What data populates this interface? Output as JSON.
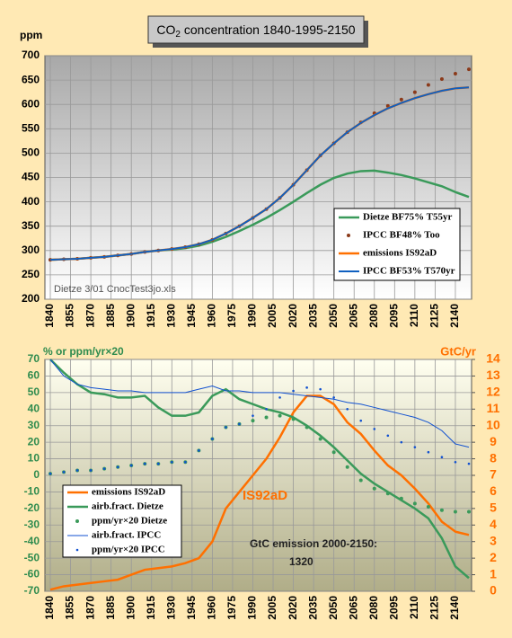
{
  "chart_data": [
    {
      "type": "line",
      "title": {
        "main": "CO",
        "sub": "2",
        "rest": " concentration 1840-1995-2150"
      },
      "y_label": "ppm",
      "annotations": [
        "Dietze 3/01 CnocTest3jo.xls"
      ],
      "x": [
        1840,
        1850,
        1860,
        1870,
        1880,
        1890,
        1900,
        1910,
        1920,
        1930,
        1940,
        1950,
        1960,
        1970,
        1980,
        1990,
        2000,
        2010,
        2020,
        2030,
        2040,
        2050,
        2060,
        2070,
        2080,
        2090,
        2100,
        2110,
        2120,
        2130,
        2140,
        2150
      ],
      "xlim": [
        1836,
        2152
      ],
      "xticks": [
        1840,
        1855,
        1870,
        1885,
        1900,
        1915,
        1930,
        1945,
        1960,
        1975,
        1990,
        2005,
        2020,
        2035,
        2050,
        2065,
        2080,
        2095,
        2110,
        2125,
        2140
      ],
      "ylim": [
        200,
        700
      ],
      "yticks": [
        200,
        250,
        300,
        350,
        400,
        450,
        500,
        550,
        600,
        650,
        700
      ],
      "grid": true,
      "series": [
        {
          "name": "Dietze BF75% T55yr",
          "color": "#3a9a5a",
          "style": "line",
          "width": 2.5,
          "values": [
            281,
            282,
            283,
            285,
            287,
            290,
            293,
            297,
            300,
            302,
            305,
            310,
            318,
            328,
            340,
            353,
            367,
            383,
            400,
            418,
            435,
            449,
            458,
            463,
            464,
            460,
            455,
            448,
            440,
            432,
            420,
            410
          ]
        },
        {
          "name": "IPCC BF48% Too",
          "color": "#8b3a1a",
          "style": "dots",
          "width": 2,
          "values": [
            281,
            282,
            283,
            285,
            287,
            290,
            293,
            297,
            300,
            303,
            307,
            313,
            322,
            335,
            350,
            367,
            385,
            408,
            435,
            465,
            495,
            520,
            543,
            563,
            582,
            597,
            610,
            625,
            640,
            652,
            663,
            672
          ]
        },
        {
          "name": "emissions IS92aD",
          "color": "#ff7000",
          "style": "line",
          "width": 2.5,
          "values": [
            281,
            282,
            283,
            285,
            287,
            290,
            293,
            297,
            300,
            303,
            307,
            313,
            322,
            335,
            350,
            367,
            385,
            408,
            435,
            465,
            495,
            520,
            543,
            562,
            578,
            592,
            603,
            613,
            621,
            628,
            633,
            635
          ]
        },
        {
          "name": "IPCC BF53% T570yr",
          "color": "#1060c0",
          "style": "line",
          "width": 2,
          "values": [
            281,
            282,
            283,
            285,
            287,
            290,
            293,
            297,
            300,
            303,
            307,
            313,
            322,
            335,
            350,
            367,
            385,
            408,
            435,
            465,
            495,
            520,
            543,
            562,
            578,
            592,
            603,
            613,
            621,
            628,
            633,
            635
          ]
        }
      ]
    },
    {
      "type": "line",
      "y_label": "%  or ppm/yr×20",
      "y2_label": "GtC/yr",
      "ytick_color": "#2e8b4e",
      "y2tick_color": "#ff7000",
      "annotations": [
        "IS92aD",
        "GtC emission 2000-2150:",
        "1320"
      ],
      "x": [
        1840,
        1850,
        1860,
        1870,
        1880,
        1890,
        1900,
        1910,
        1920,
        1930,
        1940,
        1950,
        1960,
        1970,
        1980,
        1990,
        2000,
        2010,
        2020,
        2030,
        2040,
        2050,
        2060,
        2070,
        2080,
        2090,
        2100,
        2110,
        2120,
        2130,
        2140,
        2150
      ],
      "xlim": [
        1836,
        2152
      ],
      "xticks": [
        1840,
        1855,
        1870,
        1885,
        1900,
        1915,
        1930,
        1945,
        1960,
        1975,
        1990,
        2005,
        2020,
        2035,
        2050,
        2065,
        2080,
        2095,
        2110,
        2125,
        2140
      ],
      "ylim": [
        -70,
        70
      ],
      "yticks": [
        -70,
        -60,
        -50,
        -40,
        -30,
        -20,
        -10,
        0,
        10,
        20,
        30,
        40,
        50,
        60,
        70
      ],
      "y2lim": [
        0,
        14
      ],
      "y2ticks": [
        0,
        1,
        2,
        3,
        4,
        5,
        6,
        7,
        8,
        9,
        10,
        11,
        12,
        13,
        14
      ],
      "grid": true,
      "series": [
        {
          "name": "emissions IS92aD",
          "color": "#ff7000",
          "style": "line",
          "width": 2.5,
          "axis": "y2",
          "values": [
            0.1,
            0.3,
            0.4,
            0.5,
            0.6,
            0.7,
            1.0,
            1.3,
            1.4,
            1.5,
            1.7,
            2.0,
            3.0,
            5.0,
            6.0,
            7.0,
            8.0,
            9.3,
            10.8,
            11.8,
            11.8,
            11.3,
            10.2,
            9.5,
            8.5,
            7.6,
            7.0,
            6.2,
            5.3,
            4.2,
            3.6,
            3.4
          ]
        },
        {
          "name": "airb.fract. Dietze",
          "color": "#3a9a5a",
          "style": "line",
          "width": 2.5,
          "values": [
            70,
            62,
            55,
            50,
            49,
            47,
            47,
            48,
            41,
            36,
            36,
            38,
            48,
            52,
            46,
            43,
            40,
            38,
            35,
            30,
            24,
            17,
            9,
            1,
            -5,
            -10,
            -15,
            -20,
            -26,
            -38,
            -55,
            -62
          ]
        },
        {
          "name": "ppm/yr×20 Dietze",
          "color": "#3a9a5a",
          "style": "dots",
          "width": 2,
          "values": [
            1,
            2,
            3,
            3,
            4,
            5,
            6,
            7,
            7,
            8,
            8,
            15,
            22,
            29,
            31,
            33,
            35,
            36,
            34,
            29,
            22,
            14,
            5,
            -3,
            -8,
            -11,
            -14,
            -17,
            -19,
            -21,
            -22,
            -22
          ]
        },
        {
          "name": "airb.fract. IPCC",
          "color": "#1050d0",
          "style": "line",
          "width": 1,
          "values": [
            70,
            60,
            55,
            53,
            52,
            51,
            51,
            50,
            50,
            50,
            50,
            52,
            54,
            51,
            51,
            50,
            50,
            50,
            49,
            48,
            47,
            46,
            44,
            43,
            41,
            39,
            37,
            35,
            32,
            27,
            19,
            17
          ]
        },
        {
          "name": "ppm/yr×20 IPCC",
          "color": "#1050d0",
          "style": "dots",
          "width": 1.3,
          "values": [
            1,
            2,
            3,
            3,
            4,
            5,
            6,
            7,
            7,
            8,
            8,
            15,
            22,
            29,
            31,
            36,
            40,
            47,
            51,
            53,
            52,
            47,
            40,
            33,
            28,
            24,
            20,
            17,
            14,
            11,
            8,
            7
          ]
        }
      ]
    }
  ]
}
